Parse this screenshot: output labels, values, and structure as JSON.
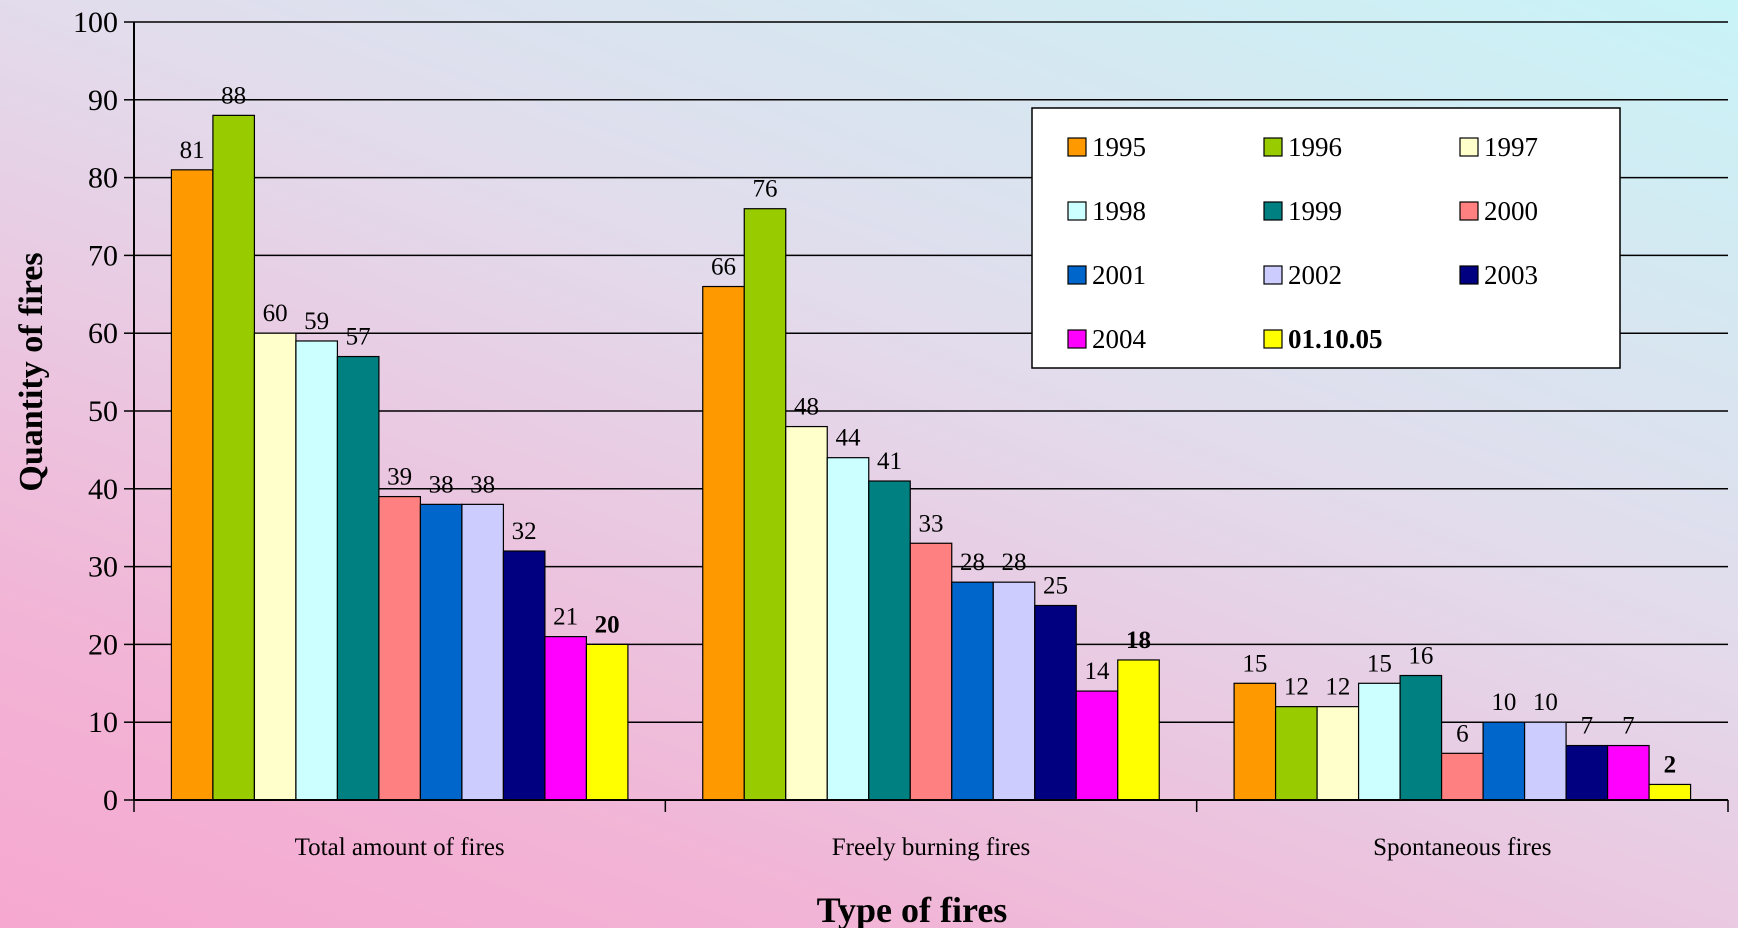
{
  "chart_data": {
    "type": "bar",
    "xlabel": "Type of fires",
    "ylabel": "Quantity of fires",
    "ylim": [
      0,
      100
    ],
    "yticks": [
      0,
      10,
      20,
      30,
      40,
      50,
      60,
      70,
      80,
      90,
      100
    ],
    "grid": true,
    "legend_position": "top-right",
    "categories": [
      "Total amount of fires",
      "Freely burning fires",
      "Spontaneous fires"
    ],
    "series": [
      {
        "name": "1995",
        "color": "#ff9900",
        "values": [
          81,
          66,
          15
        ]
      },
      {
        "name": "1996",
        "color": "#99cc00",
        "values": [
          88,
          76,
          12
        ]
      },
      {
        "name": "1997",
        "color": "#ffffcc",
        "values": [
          60,
          48,
          12
        ]
      },
      {
        "name": "1998",
        "color": "#ccffff",
        "values": [
          59,
          44,
          15
        ]
      },
      {
        "name": "1999",
        "color": "#008080",
        "values": [
          57,
          41,
          16
        ]
      },
      {
        "name": "2000",
        "color": "#ff8080",
        "values": [
          39,
          33,
          6
        ]
      },
      {
        "name": "2001",
        "color": "#0066cc",
        "values": [
          38,
          28,
          10
        ]
      },
      {
        "name": "2002",
        "color": "#ccccff",
        "values": [
          38,
          28,
          10
        ]
      },
      {
        "name": "2003",
        "color": "#000080",
        "values": [
          32,
          25,
          7
        ]
      },
      {
        "name": "2004",
        "color": "#ff00ff",
        "values": [
          21,
          14,
          7
        ]
      },
      {
        "name": "01.10.05",
        "color": "#ffff00",
        "values": [
          20,
          18,
          2
        ],
        "bold": true
      }
    ]
  }
}
